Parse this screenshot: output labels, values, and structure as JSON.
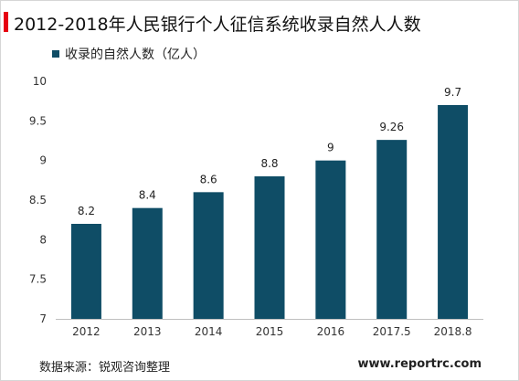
{
  "title": "2012-2018年人民银行个人征信系统收录自然人人数",
  "source": "数据来源：锐观咨询整理",
  "website": "www.reportrc.com",
  "colors": {
    "bar": "#0f4d66",
    "accent": "#e60012",
    "axis": "#bfbfbf"
  },
  "chart_data": {
    "type": "bar",
    "title": "2012-2018年人民银行个人征信系统收录自然人人数",
    "xlabel": "",
    "ylabel": "",
    "categories": [
      "2012",
      "2013",
      "2014",
      "2015",
      "2016",
      "2017.5",
      "2018.8"
    ],
    "series": [
      {
        "name": "收录的自然人数（亿人）",
        "values": [
          8.2,
          8.4,
          8.6,
          8.8,
          9,
          9.26,
          9.7
        ]
      }
    ],
    "value_labels": [
      "8.2",
      "8.4",
      "8.6",
      "8.8",
      "9",
      "9.26",
      "9.7"
    ],
    "ylim": [
      7,
      10
    ],
    "yticks": [
      7,
      7.5,
      8,
      8.5,
      9,
      9.5,
      10
    ],
    "ytick_labels": [
      "7",
      "7.5",
      "8",
      "8.5",
      "9",
      "9.5",
      "10"
    ],
    "grid": false,
    "legend": "top-left"
  }
}
